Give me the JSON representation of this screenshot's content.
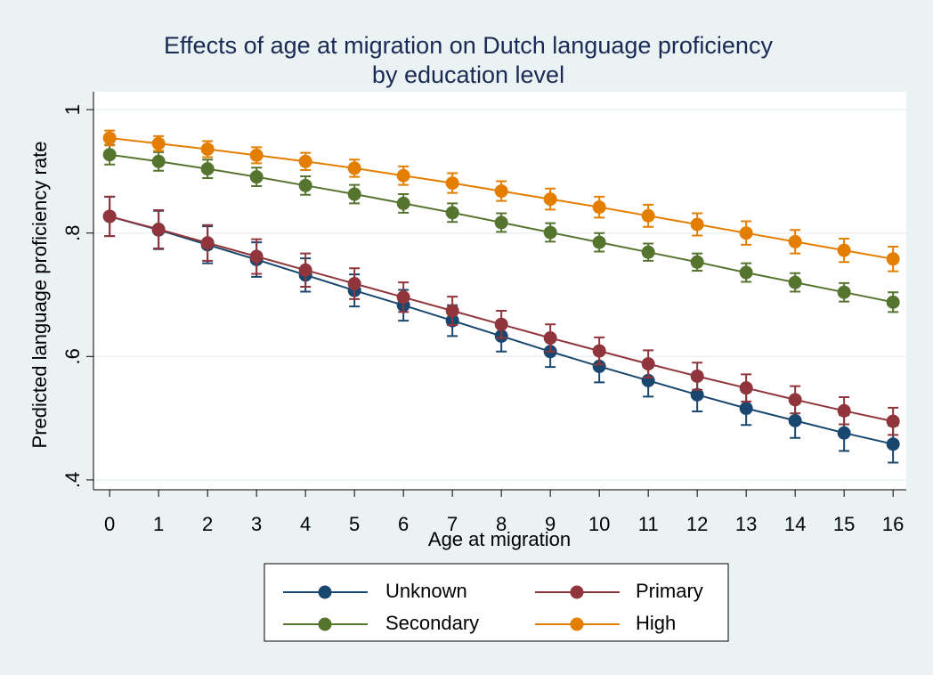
{
  "chart_data": {
    "type": "line",
    "title": [
      "Effects of age at migration on Dutch language proficiency",
      "by education level"
    ],
    "x_label": "Age at migration",
    "y_label": "Predicted language proficiency rate",
    "x": [
      0,
      1,
      2,
      3,
      4,
      5,
      6,
      7,
      8,
      9,
      10,
      11,
      12,
      13,
      14,
      15,
      16
    ],
    "xlim": [
      -0.33,
      16.27
    ],
    "xticks": [
      0,
      1,
      2,
      3,
      4,
      5,
      6,
      7,
      8,
      9,
      10,
      11,
      12,
      13,
      14,
      15,
      16
    ],
    "ylim": [
      0.384,
      1.029
    ],
    "yticks": [
      {
        "value": 0.4,
        "label": ".4"
      },
      {
        "value": 0.6,
        "label": ".6"
      },
      {
        "value": 0.8,
        "label": ".8"
      },
      1
    ],
    "grid": true,
    "legend_position": "bottom",
    "series": [
      {
        "name": "Unknown",
        "color": "#1a476f",
        "values": [
          0.827,
          0.805,
          0.781,
          0.757,
          0.732,
          0.707,
          0.683,
          0.658,
          0.633,
          0.608,
          0.584,
          0.561,
          0.538,
          0.516,
          0.496,
          0.476,
          0.458
        ],
        "errors": [
          0.032,
          0.031,
          0.03,
          0.028,
          0.027,
          0.026,
          0.025,
          0.025,
          0.025,
          0.025,
          0.026,
          0.026,
          0.027,
          0.027,
          0.028,
          0.029,
          0.03
        ]
      },
      {
        "name": "Primary",
        "color": "#90353b",
        "values": [
          0.827,
          0.806,
          0.784,
          0.762,
          0.74,
          0.718,
          0.696,
          0.674,
          0.652,
          0.63,
          0.609,
          0.588,
          0.568,
          0.549,
          0.53,
          0.512,
          0.495
        ],
        "errors": [
          0.032,
          0.031,
          0.029,
          0.028,
          0.027,
          0.025,
          0.024,
          0.023,
          0.022,
          0.022,
          0.022,
          0.022,
          0.022,
          0.022,
          0.022,
          0.022,
          0.022
        ]
      },
      {
        "name": "Secondary",
        "color": "#55752f",
        "values": [
          0.927,
          0.916,
          0.904,
          0.891,
          0.877,
          0.863,
          0.848,
          0.833,
          0.817,
          0.801,
          0.785,
          0.769,
          0.753,
          0.736,
          0.72,
          0.704,
          0.688
        ],
        "errors": [
          0.016,
          0.015,
          0.015,
          0.015,
          0.015,
          0.015,
          0.015,
          0.015,
          0.015,
          0.015,
          0.015,
          0.014,
          0.014,
          0.015,
          0.015,
          0.015,
          0.016
        ]
      },
      {
        "name": "High",
        "color": "#e37e00",
        "values": [
          0.954,
          0.945,
          0.936,
          0.926,
          0.916,
          0.905,
          0.893,
          0.881,
          0.868,
          0.855,
          0.842,
          0.828,
          0.814,
          0.8,
          0.786,
          0.772,
          0.758
        ],
        "errors": [
          0.012,
          0.012,
          0.013,
          0.013,
          0.014,
          0.014,
          0.015,
          0.016,
          0.016,
          0.017,
          0.017,
          0.018,
          0.018,
          0.019,
          0.019,
          0.019,
          0.02
        ]
      }
    ]
  }
}
